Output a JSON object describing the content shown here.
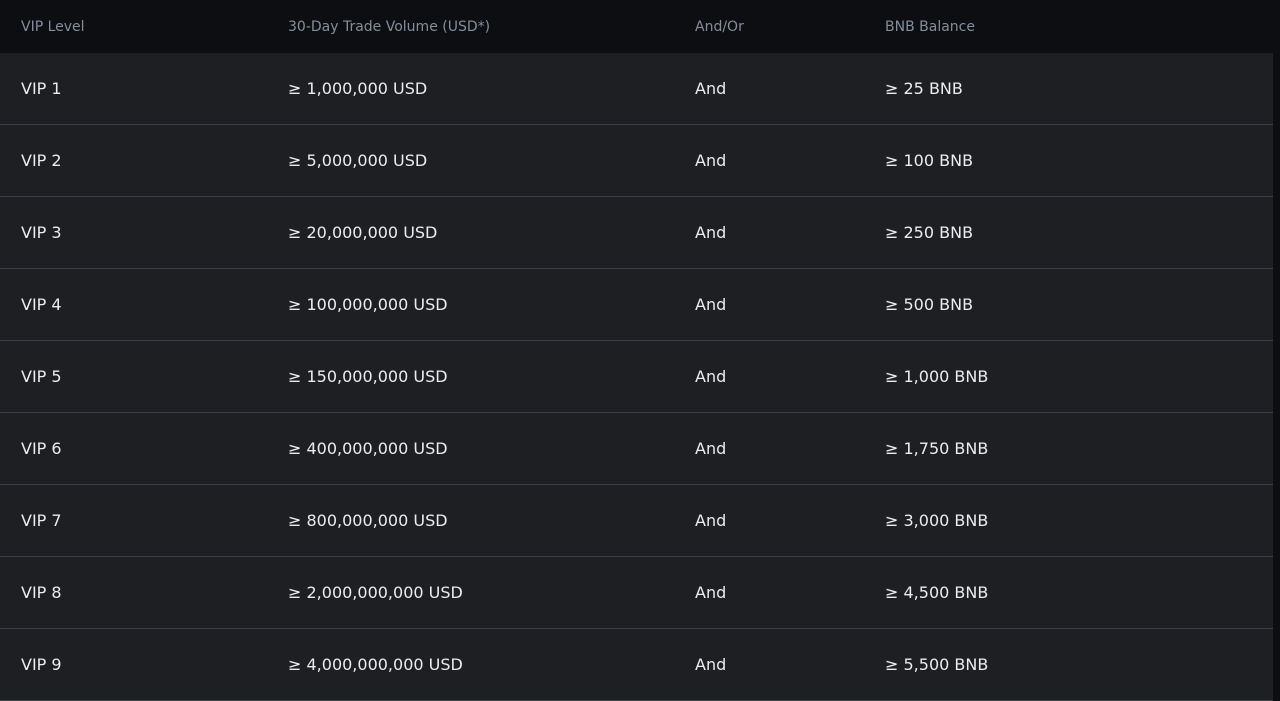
{
  "table": {
    "headers": [
      "VIP Level",
      "30-Day Trade Volume (USD*)",
      "And/Or",
      "BNB Balance"
    ],
    "rows": [
      [
        "VIP 1",
        "≥ 1,000,000 USD",
        "And",
        "≥ 25 BNB"
      ],
      [
        "VIP 2",
        "≥ 5,000,000 USD",
        "And",
        "≥ 100 BNB"
      ],
      [
        "VIP 3",
        "≥ 20,000,000 USD",
        "And",
        "≥ 250 BNB"
      ],
      [
        "VIP 4",
        "≥ 100,000,000 USD",
        "And",
        "≥ 500 BNB"
      ],
      [
        "VIP 5",
        "≥ 150,000,000 USD",
        "And",
        "≥ 1,000 BNB"
      ],
      [
        "VIP 6",
        "≥ 400,000,000 USD",
        "And",
        "≥ 1,750 BNB"
      ],
      [
        "VIP 7",
        "≥ 800,000,000 USD",
        "And",
        "≥ 3,000 BNB"
      ],
      [
        "VIP 8",
        "≥ 2,000,000,000 USD",
        "And",
        "≥ 4,500 BNB"
      ],
      [
        "VIP 9",
        "≥ 4,000,000,000 USD",
        "And",
        "≥ 5,500 BNB"
      ]
    ]
  },
  "colors": {
    "header_bg": "#0c0e11",
    "row_bg": "#1e1f23",
    "header_text": "#848e9c",
    "row_text": "#eaecef",
    "divider": "#3e4148"
  }
}
